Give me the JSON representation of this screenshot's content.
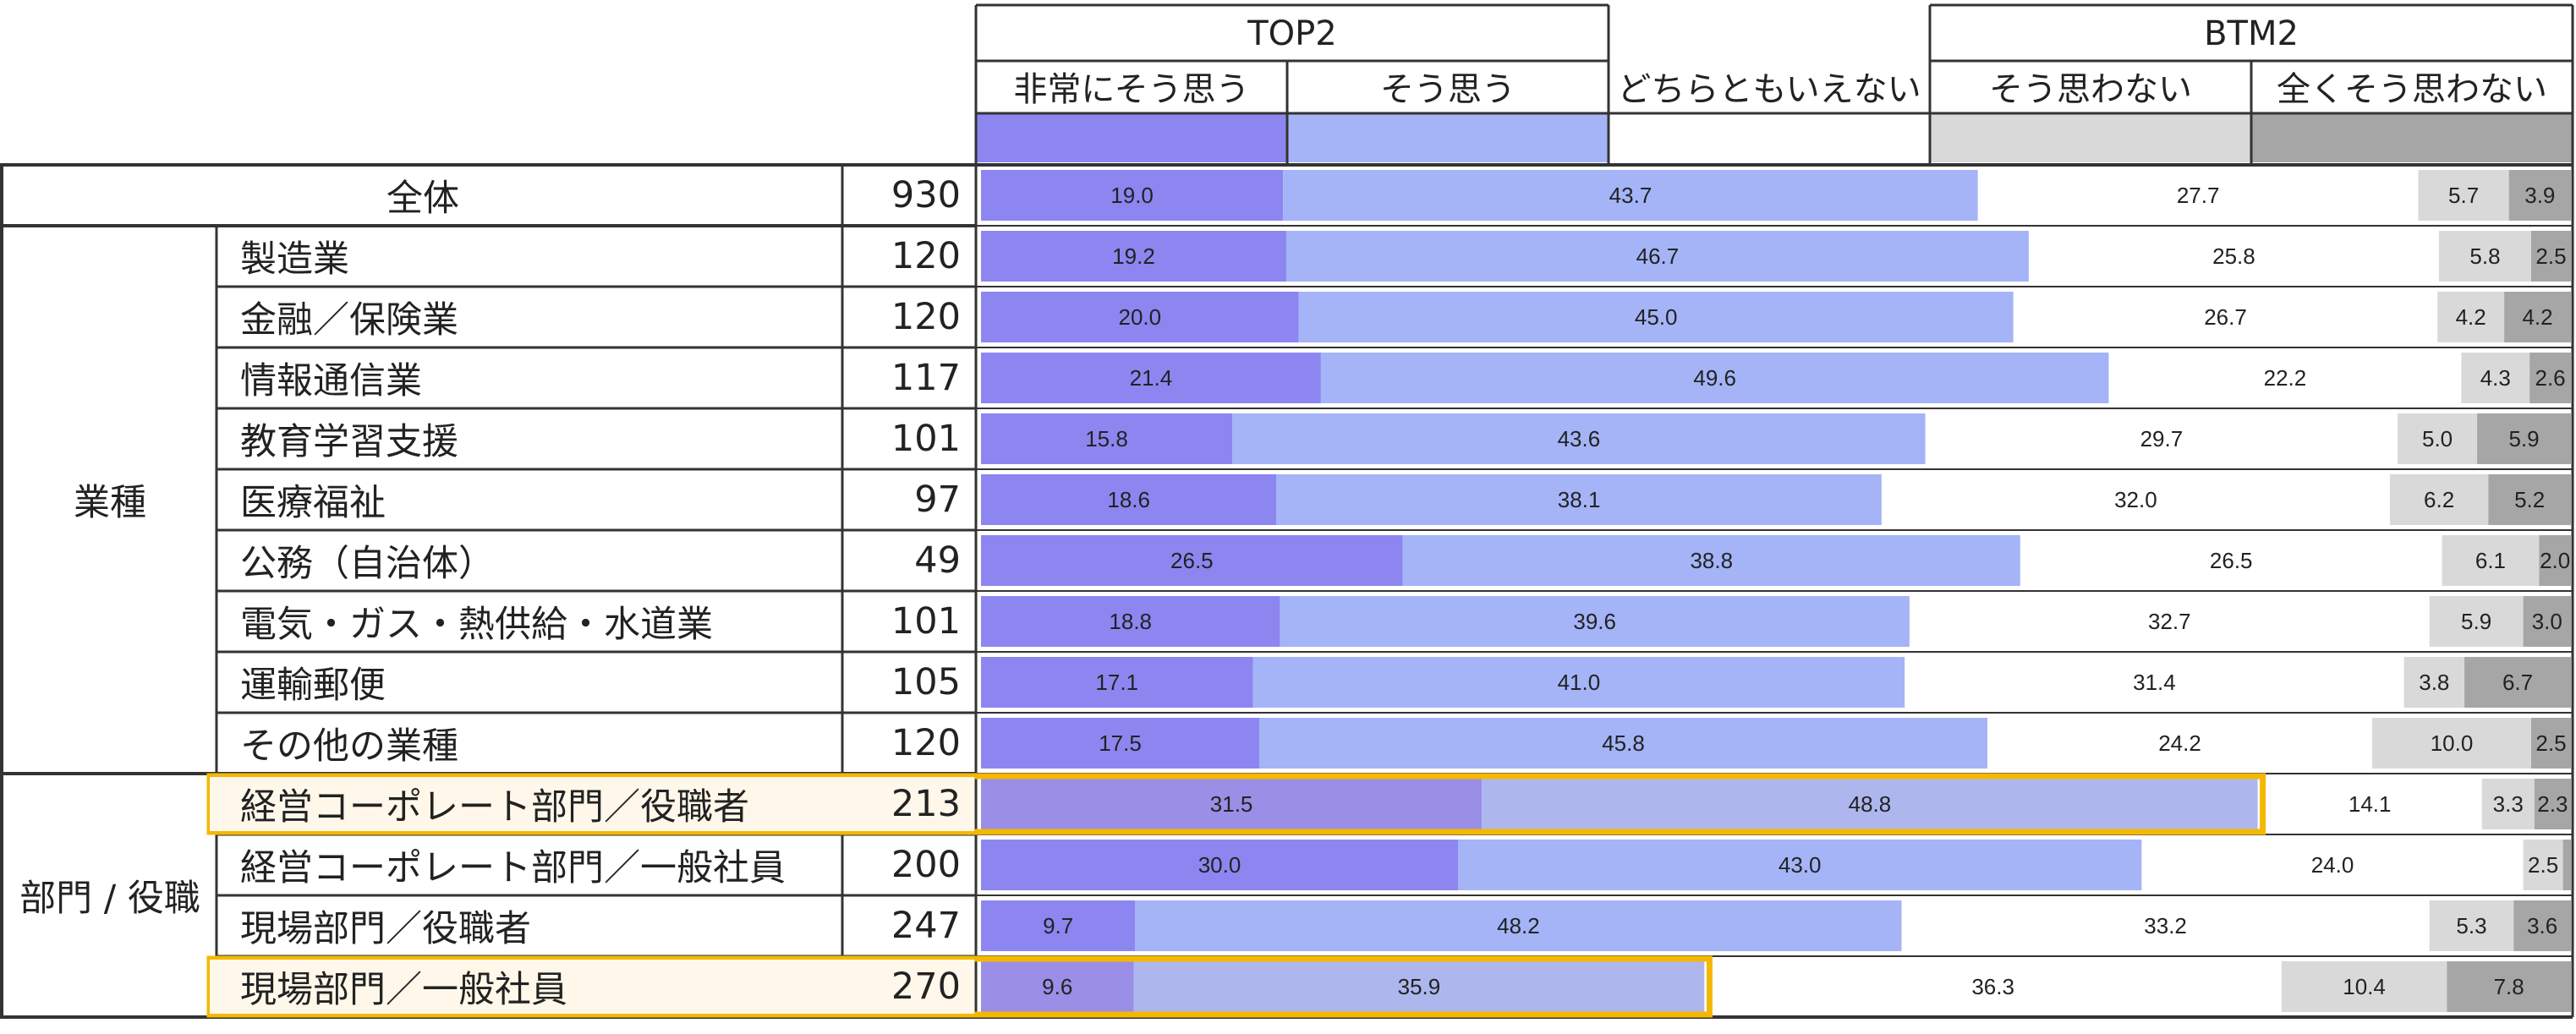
{
  "header": {
    "top2": "TOP2",
    "btm2": "BTM2",
    "categories": [
      "非常にそう思う",
      "そう思う",
      "どちらともいえない",
      "そう思わない",
      "全くそう思わない"
    ]
  },
  "colors": {
    "c1": "#8d86f0",
    "c2": "#a4b4f7",
    "c3": "#ffffff",
    "c4": "#d9d9d9",
    "c5": "#a6a6a6",
    "c1_highlight": "#9a8ee6",
    "c2_highlight": "#adb7ee",
    "highlight_border": "#f5b800",
    "highlight_fill": "#fff8ea",
    "grid": "#333333"
  },
  "groups": [
    {
      "label": "業種",
      "rows": [
        1,
        9
      ]
    },
    {
      "label": "部門 / 役職",
      "rows": [
        10,
        13
      ]
    }
  ],
  "chart_data": {
    "type": "bar",
    "stacked": true,
    "orientation": "horizontal",
    "normalized": true,
    "series_names": [
      "非常にそう思う",
      "そう思う",
      "どちらともいえない",
      "そう思わない",
      "全くそう思わない"
    ],
    "rows": [
      {
        "label": "全体",
        "n": "930",
        "values": [
          19.0,
          43.7,
          27.7,
          5.7,
          3.9
        ]
      },
      {
        "label": "製造業",
        "n": "120",
        "values": [
          19.2,
          46.7,
          25.8,
          5.8,
          2.5
        ]
      },
      {
        "label": "金融／保険業",
        "n": "120",
        "values": [
          20.0,
          45.0,
          26.7,
          4.2,
          4.2
        ]
      },
      {
        "label": "情報通信業",
        "n": "117",
        "values": [
          21.4,
          49.6,
          22.2,
          4.3,
          2.6
        ]
      },
      {
        "label": "教育学習支援",
        "n": "101",
        "values": [
          15.8,
          43.6,
          29.7,
          5.0,
          5.9
        ]
      },
      {
        "label": "医療福祉",
        "n": "97",
        "values": [
          18.6,
          38.1,
          32.0,
          6.2,
          5.2
        ]
      },
      {
        "label": "公務（自治体）",
        "n": "49",
        "values": [
          26.5,
          38.8,
          26.5,
          6.1,
          2.0
        ]
      },
      {
        "label": "電気・ガス・熱供給・水道業",
        "n": "101",
        "values": [
          18.8,
          39.6,
          32.7,
          5.9,
          3.0
        ]
      },
      {
        "label": "運輸郵便",
        "n": "105",
        "values": [
          17.1,
          41.0,
          31.4,
          3.8,
          6.7
        ]
      },
      {
        "label": "その他の業種",
        "n": "120",
        "values": [
          17.5,
          45.8,
          24.2,
          10.0,
          2.5
        ]
      },
      {
        "label": "経営コーポレート部門／役職者",
        "n": "213",
        "values": [
          31.5,
          48.8,
          14.1,
          3.3,
          2.3
        ],
        "highlight": true
      },
      {
        "label": "経営コーポレート部門／一般社員",
        "n": "200",
        "values": [
          30.0,
          43.0,
          24.0,
          2.5,
          0.5
        ]
      },
      {
        "label": "現場部門／役職者",
        "n": "247",
        "values": [
          9.7,
          48.2,
          33.2,
          5.3,
          3.6
        ]
      },
      {
        "label": "現場部門／一般社員",
        "n": "270",
        "values": [
          9.6,
          35.9,
          36.3,
          10.4,
          7.8
        ],
        "highlight": true
      }
    ]
  }
}
